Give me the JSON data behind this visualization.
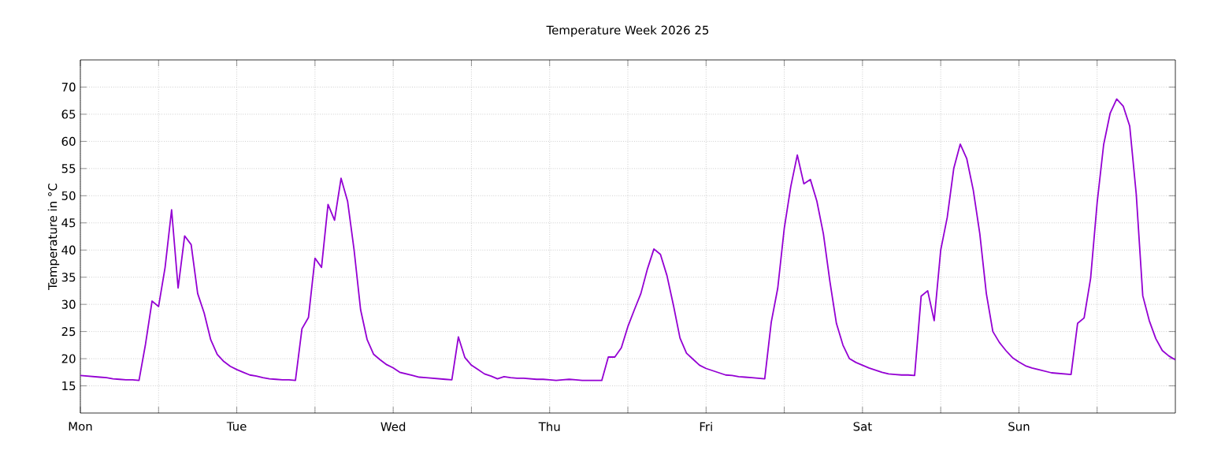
{
  "chart_data": {
    "type": "line",
    "title": "Temperature Week 2026 25",
    "ylabel": "Temperature in °C",
    "categories": [
      "Mon",
      null,
      null,
      null,
      null,
      null,
      null,
      null,
      null,
      null,
      null,
      null,
      null,
      null,
      null,
      null,
      null,
      null,
      null,
      null,
      null,
      null,
      null,
      null,
      "Tue",
      null,
      null,
      null,
      null,
      null,
      null,
      null,
      null,
      null,
      null,
      null,
      null,
      null,
      null,
      null,
      null,
      null,
      null,
      null,
      null,
      null,
      null,
      null,
      "Wed",
      null,
      null,
      null,
      null,
      null,
      null,
      null,
      null,
      null,
      null,
      null,
      null,
      null,
      null,
      null,
      null,
      null,
      null,
      null,
      null,
      null,
      null,
      null,
      "Thu",
      null,
      null,
      null,
      null,
      null,
      null,
      null,
      null,
      null,
      null,
      null,
      null,
      null,
      null,
      null,
      null,
      null,
      null,
      null,
      null,
      null,
      null,
      null,
      "Fri",
      null,
      null,
      null,
      null,
      null,
      null,
      null,
      null,
      null,
      null,
      null,
      null,
      null,
      null,
      null,
      null,
      null,
      null,
      null,
      null,
      null,
      null,
      null,
      "Sat",
      null,
      null,
      null,
      null,
      null,
      null,
      null,
      null,
      null,
      null,
      null,
      null,
      null,
      null,
      null,
      null,
      null,
      null,
      null,
      null,
      null,
      null,
      null,
      "Sun",
      null,
      null,
      null,
      null,
      null,
      null,
      null,
      null,
      null,
      null,
      null,
      null,
      null,
      null,
      null,
      null,
      null,
      null,
      null,
      null,
      null,
      null,
      null,
      null
    ],
    "series": [
      {
        "color": "#9400d3",
        "values": [
          16.9,
          16.8,
          16.7,
          16.6,
          16.5,
          16.3,
          16.2,
          16.1,
          16.1,
          16.0,
          22.7,
          30.6,
          29.6,
          36.8,
          47.4,
          33.0,
          42.6,
          41.0,
          32.0,
          28.4,
          23.5,
          20.8,
          19.5,
          18.6,
          18.0,
          17.5,
          17.0,
          16.8,
          16.5,
          16.3,
          16.2,
          16.1,
          16.1,
          16.0,
          25.5,
          27.6,
          38.5,
          36.8,
          48.4,
          45.5,
          53.2,
          49.0,
          40.0,
          29.0,
          23.5,
          20.8,
          19.8,
          18.9,
          18.3,
          17.5,
          17.2,
          16.9,
          16.6,
          16.5,
          16.4,
          16.3,
          16.2,
          16.1,
          24.0,
          20.2,
          18.8,
          18.0,
          17.2,
          16.8,
          16.3,
          16.7,
          16.5,
          16.4,
          16.4,
          16.3,
          16.2,
          16.2,
          16.1,
          16.0,
          16.1,
          16.2,
          16.1,
          16.0,
          16.0,
          16.0,
          16.0,
          20.3,
          20.3,
          22.0,
          25.9,
          29.0,
          32.0,
          36.5,
          40.2,
          39.2,
          35.3,
          29.8,
          23.8,
          21.0,
          19.9,
          18.8,
          18.2,
          17.8,
          17.4,
          17.0,
          16.9,
          16.7,
          16.6,
          16.5,
          16.4,
          16.3,
          26.7,
          33.0,
          44.0,
          51.7,
          57.5,
          52.2,
          53.0,
          49.0,
          43.0,
          34.2,
          26.5,
          22.5,
          20.0,
          19.3,
          18.8,
          18.3,
          17.9,
          17.5,
          17.2,
          17.1,
          17.0,
          17.0,
          16.9,
          31.5,
          32.5,
          27.0,
          40.0,
          46.0,
          55.0,
          59.5,
          56.8,
          51.0,
          43.0,
          32.0,
          25.0,
          23.0,
          21.5,
          20.2,
          19.4,
          18.7,
          18.3,
          18.0,
          17.7,
          17.4,
          17.3,
          17.2,
          17.1,
          26.5,
          27.5,
          34.8,
          48.7,
          59.4,
          65.2,
          67.8,
          66.5,
          62.8,
          50.3,
          31.6,
          27.0,
          23.7,
          21.5,
          20.5,
          19.8
        ]
      }
    ],
    "ylim": [
      10,
      75
    ],
    "yticks": [
      15,
      20,
      25,
      30,
      35,
      40,
      45,
      50,
      55,
      60,
      65,
      70
    ],
    "grid": true
  }
}
